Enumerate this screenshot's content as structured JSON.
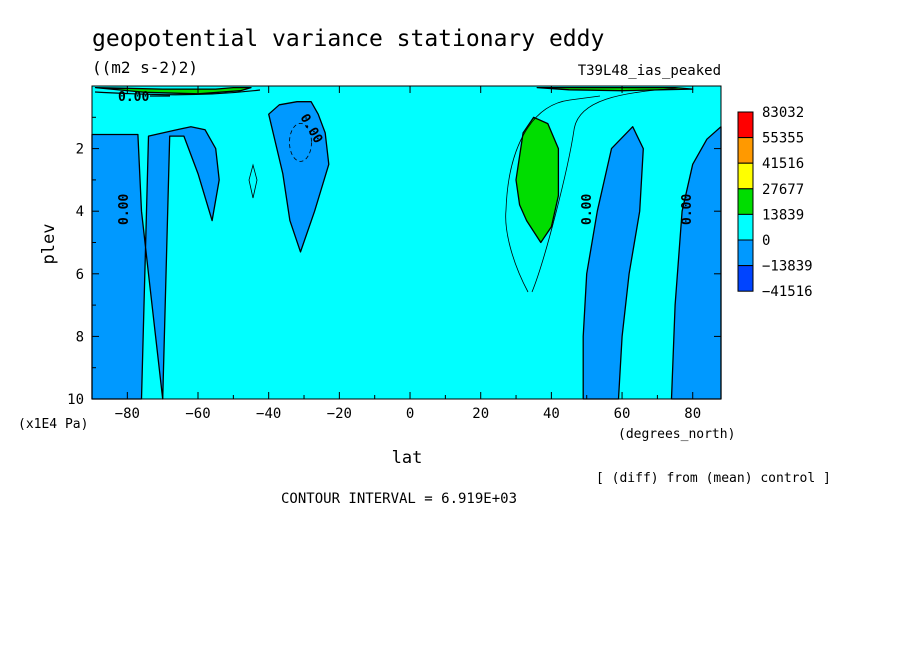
{
  "chart_data": {
    "type": "heatmap",
    "title": "geopotential variance stationary eddy",
    "units": "((m2 s-2)2)",
    "run_label": "T39L48_ias_peaked",
    "xlabel": "lat",
    "x_units": "(degrees_north)",
    "ylabel": "plev",
    "y_units": "(x1E4 Pa)",
    "xlim": [
      -90,
      88
    ],
    "ylim": [
      10,
      0
    ],
    "x_ticks": [
      -80,
      -60,
      -40,
      -20,
      0,
      20,
      40,
      60,
      80
    ],
    "y_ticks": [
      2,
      4,
      6,
      8,
      10
    ],
    "contour_interval": "CONTOUR INTERVAL = 6.919E+03",
    "footnote": "[ (diff) from (mean) control ]",
    "contour_labels": [
      "0.00",
      "0.00",
      "0.00",
      "0.00",
      "0.00"
    ],
    "legend": {
      "levels": [
        "83032",
        "55355",
        "41516",
        "27677",
        "13839",
        "0",
        "-13839",
        "-41516"
      ],
      "colors": [
        "#ff0000",
        "#ff9900",
        "#ffff00",
        "#00dd00",
        "#00ffff",
        "#0099ff",
        "#0044ff"
      ]
    },
    "background_color": "#00ffff",
    "regions": [
      {
        "name": "negative-band-south",
        "color": "#0099ff",
        "lat": [
          -90,
          -90,
          -77,
          -76,
          -74,
          -72,
          -70,
          -68,
          -64,
          -60,
          -56,
          -54,
          -55,
          -58,
          -62,
          -66,
          -74,
          -76,
          -90
        ],
        "plev": [
          10,
          1.55,
          1.55,
          4,
          6,
          8,
          10,
          1.6,
          1.6,
          2.8,
          4.3,
          3,
          2,
          1.4,
          1.3,
          1.4,
          1.6,
          10,
          10
        ]
      },
      {
        "name": "negative-cell-30s",
        "color": "#0099ff",
        "lat": [
          -40,
          -36,
          -34,
          -31,
          -27,
          -23,
          -24,
          -26,
          -28,
          -32,
          -37,
          -40
        ],
        "plev": [
          0.9,
          2.8,
          4.3,
          5.3,
          4,
          2.5,
          1.5,
          0.9,
          0.5,
          0.5,
          0.6,
          0.9
        ],
        "dashed_subcontour": true
      },
      {
        "name": "negative-band-50n",
        "color": "#0099ff",
        "lat": [
          49,
          49,
          50,
          53,
          57,
          63,
          66,
          65,
          62,
          60,
          59,
          49
        ],
        "plev": [
          10,
          8,
          6,
          4,
          2,
          1.3,
          2,
          4,
          6,
          8,
          10,
          10
        ]
      },
      {
        "name": "negative-band-north",
        "color": "#0099ff",
        "lat": [
          74,
          75,
          77,
          80,
          84,
          88,
          88,
          74
        ],
        "plev": [
          10,
          7,
          4,
          2.5,
          1.7,
          1.3,
          10,
          10
        ]
      },
      {
        "name": "positive-cell-35n",
        "color": "#00dd00",
        "lat": [
          30,
          32,
          35,
          39,
          42,
          42,
          40,
          37,
          33,
          31,
          30
        ],
        "plev": [
          3,
          1.5,
          1,
          1.2,
          2,
          3.5,
          4.5,
          5,
          4.3,
          3.8,
          3
        ]
      },
      {
        "name": "positive-top-south",
        "color": "#00dd00",
        "lat": [
          -89,
          -70,
          -55,
          -50,
          -45,
          -48,
          -60,
          -75,
          -89
        ],
        "plev": [
          0.05,
          0.1,
          0.1,
          0.05,
          0.05,
          0.15,
          0.25,
          0.2,
          0.05
        ]
      },
      {
        "name": "positive-top-north",
        "color": "#00dd00",
        "lat": [
          36,
          50,
          60,
          75,
          80,
          60,
          45,
          36
        ],
        "plev": [
          0.05,
          0.05,
          0.05,
          0.05,
          0.1,
          0.15,
          0.12,
          0.05
        ]
      }
    ]
  }
}
